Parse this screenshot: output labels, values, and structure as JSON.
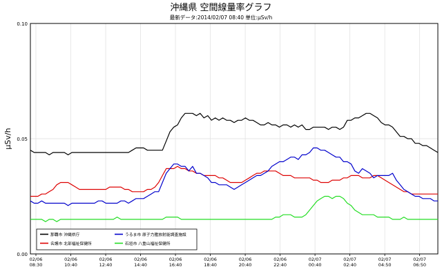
{
  "chart_data": {
    "type": "line",
    "title": "沖縄県 空間線量率グラフ",
    "subtitle": "最新データ:2014/02/07 08:40 単位:μSv/h",
    "ylabel": "μSv/h",
    "ylim": [
      0.0,
      0.1
    ],
    "yticks": [
      {
        "value": 0.0,
        "label": "0.00"
      },
      {
        "value": 0.05,
        "label": "0.05"
      },
      {
        "value": 0.1,
        "label": "0.10"
      }
    ],
    "x_ticks": [
      {
        "date": "02/06",
        "time": "08:30"
      },
      {
        "date": "02/06",
        "time": "10:40"
      },
      {
        "date": "02/06",
        "time": "12:40"
      },
      {
        "date": "02/06",
        "time": "14:40"
      },
      {
        "date": "02/06",
        "time": "16:40"
      },
      {
        "date": "02/06",
        "time": "18:40"
      },
      {
        "date": "02/06",
        "time": "20:40"
      },
      {
        "date": "02/06",
        "time": "22:40"
      },
      {
        "date": "02/07",
        "time": "00:40"
      },
      {
        "date": "02/07",
        "time": "02:40"
      },
      {
        "date": "02/07",
        "time": "04:50"
      },
      {
        "date": "02/07",
        "time": "06:50"
      }
    ],
    "grid": true,
    "legend_position": "bottom-left",
    "series": [
      {
        "name": "那覇市 沖縄県庁",
        "color": "#000000",
        "values": [
          0.045,
          0.044,
          0.044,
          0.044,
          0.044,
          0.043,
          0.044,
          0.044,
          0.044,
          0.044,
          0.043,
          0.044,
          0.044,
          0.044,
          0.044,
          0.044,
          0.044,
          0.044,
          0.044,
          0.044,
          0.044,
          0.044,
          0.044,
          0.044,
          0.044,
          0.044,
          0.044,
          0.045,
          0.046,
          0.046,
          0.046,
          0.045,
          0.045,
          0.045,
          0.045,
          0.045,
          0.049,
          0.053,
          0.055,
          0.056,
          0.059,
          0.061,
          0.061,
          0.061,
          0.06,
          0.061,
          0.059,
          0.06,
          0.058,
          0.059,
          0.058,
          0.059,
          0.058,
          0.058,
          0.057,
          0.058,
          0.058,
          0.059,
          0.058,
          0.058,
          0.057,
          0.056,
          0.056,
          0.057,
          0.056,
          0.056,
          0.055,
          0.056,
          0.056,
          0.055,
          0.056,
          0.055,
          0.056,
          0.054,
          0.054,
          0.055,
          0.055,
          0.055,
          0.055,
          0.054,
          0.055,
          0.055,
          0.054,
          0.055,
          0.058,
          0.058,
          0.059,
          0.059,
          0.06,
          0.061,
          0.061,
          0.06,
          0.059,
          0.057,
          0.056,
          0.056,
          0.055,
          0.053,
          0.051,
          0.051,
          0.05,
          0.05,
          0.048,
          0.048,
          0.047,
          0.047,
          0.046,
          0.045,
          0.044
        ]
      },
      {
        "name": "名護市 北部福祉保健所",
        "color": "#dd0000",
        "values": [
          0.025,
          0.025,
          0.025,
          0.026,
          0.026,
          0.027,
          0.028,
          0.03,
          0.031,
          0.031,
          0.031,
          0.03,
          0.029,
          0.028,
          0.028,
          0.028,
          0.028,
          0.028,
          0.028,
          0.028,
          0.028,
          0.029,
          0.029,
          0.029,
          0.029,
          0.028,
          0.028,
          0.027,
          0.027,
          0.027,
          0.027,
          0.028,
          0.028,
          0.029,
          0.031,
          0.034,
          0.037,
          0.037,
          0.037,
          0.038,
          0.037,
          0.037,
          0.036,
          0.036,
          0.035,
          0.035,
          0.034,
          0.034,
          0.034,
          0.034,
          0.033,
          0.033,
          0.032,
          0.031,
          0.031,
          0.031,
          0.031,
          0.032,
          0.033,
          0.034,
          0.035,
          0.035,
          0.036,
          0.036,
          0.036,
          0.036,
          0.035,
          0.034,
          0.034,
          0.034,
          0.033,
          0.033,
          0.033,
          0.033,
          0.033,
          0.032,
          0.032,
          0.031,
          0.031,
          0.031,
          0.032,
          0.032,
          0.032,
          0.033,
          0.033,
          0.034,
          0.034,
          0.034,
          0.033,
          0.033,
          0.033,
          0.034,
          0.034,
          0.033,
          0.032,
          0.031,
          0.03,
          0.029,
          0.028,
          0.027,
          0.027,
          0.026,
          0.026,
          0.026,
          0.026,
          0.026,
          0.026,
          0.026,
          0.026
        ]
      },
      {
        "name": "うるま市 原子力艦放射能調査施設",
        "color": "#0000cc",
        "values": [
          0.023,
          0.022,
          0.022,
          0.023,
          0.022,
          0.022,
          0.022,
          0.022,
          0.022,
          0.022,
          0.021,
          0.022,
          0.022,
          0.022,
          0.022,
          0.022,
          0.022,
          0.022,
          0.023,
          0.023,
          0.022,
          0.022,
          0.022,
          0.022,
          0.023,
          0.023,
          0.022,
          0.023,
          0.024,
          0.024,
          0.024,
          0.025,
          0.026,
          0.027,
          0.027,
          0.031,
          0.035,
          0.037,
          0.039,
          0.039,
          0.038,
          0.038,
          0.036,
          0.038,
          0.035,
          0.035,
          0.034,
          0.033,
          0.031,
          0.031,
          0.03,
          0.03,
          0.03,
          0.029,
          0.028,
          0.029,
          0.03,
          0.031,
          0.032,
          0.033,
          0.034,
          0.034,
          0.035,
          0.036,
          0.038,
          0.039,
          0.04,
          0.04,
          0.041,
          0.042,
          0.042,
          0.041,
          0.043,
          0.043,
          0.044,
          0.046,
          0.046,
          0.045,
          0.045,
          0.044,
          0.043,
          0.042,
          0.042,
          0.04,
          0.04,
          0.039,
          0.036,
          0.035,
          0.037,
          0.036,
          0.035,
          0.033,
          0.034,
          0.034,
          0.034,
          0.034,
          0.035,
          0.032,
          0.03,
          0.028,
          0.027,
          0.026,
          0.025,
          0.025,
          0.024,
          0.024,
          0.024,
          0.023,
          0.023
        ]
      },
      {
        "name": "石垣市 八重山福祉保健所",
        "color": "#22dd22",
        "values": [
          0.015,
          0.015,
          0.015,
          0.015,
          0.014,
          0.015,
          0.015,
          0.014,
          0.015,
          0.015,
          0.015,
          0.015,
          0.015,
          0.015,
          0.015,
          0.015,
          0.015,
          0.015,
          0.015,
          0.015,
          0.015,
          0.015,
          0.015,
          0.016,
          0.015,
          0.015,
          0.015,
          0.015,
          0.015,
          0.015,
          0.015,
          0.015,
          0.015,
          0.015,
          0.015,
          0.015,
          0.016,
          0.016,
          0.016,
          0.016,
          0.015,
          0.015,
          0.015,
          0.015,
          0.015,
          0.015,
          0.015,
          0.015,
          0.015,
          0.015,
          0.015,
          0.015,
          0.015,
          0.015,
          0.015,
          0.015,
          0.015,
          0.015,
          0.015,
          0.015,
          0.015,
          0.015,
          0.015,
          0.015,
          0.015,
          0.016,
          0.016,
          0.017,
          0.017,
          0.017,
          0.016,
          0.016,
          0.016,
          0.017,
          0.019,
          0.021,
          0.023,
          0.024,
          0.025,
          0.025,
          0.024,
          0.025,
          0.025,
          0.024,
          0.022,
          0.021,
          0.019,
          0.018,
          0.017,
          0.017,
          0.017,
          0.017,
          0.016,
          0.016,
          0.016,
          0.016,
          0.015,
          0.015,
          0.015,
          0.016,
          0.015,
          0.015,
          0.015,
          0.015,
          0.015,
          0.015,
          0.015,
          0.015,
          0.015
        ]
      }
    ]
  }
}
